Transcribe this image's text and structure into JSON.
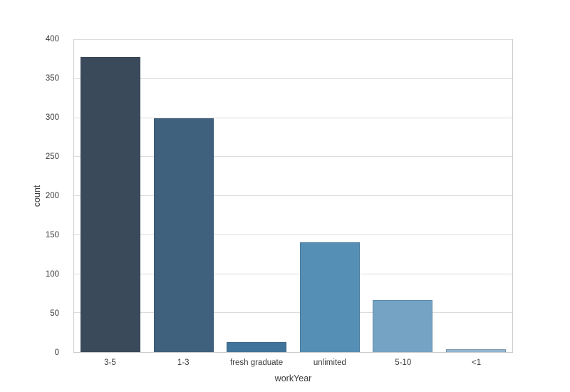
{
  "figure": {
    "background": "#ffffff",
    "plot_background": "#ffffff",
    "grid_color": "#dcdcdc",
    "spine_color": "#cccccc",
    "text_color": "#3b3b3b"
  },
  "chart_data": {
    "type": "bar",
    "title": "",
    "xlabel": "workYear",
    "ylabel": "count",
    "categories": [
      "3-5",
      "1-3",
      "fresh graduate",
      "unlimited",
      "5-10",
      "<1"
    ],
    "values": [
      378,
      300,
      13,
      141,
      67,
      4
    ],
    "bar_colors": [
      "#3b4a5a",
      "#3f617e",
      "#41749a",
      "#568fb5",
      "#74a3c4",
      "#92b5d1"
    ],
    "ylim": [
      0,
      400
    ],
    "yticks": [
      0,
      50,
      100,
      150,
      200,
      250,
      300,
      350,
      400
    ],
    "grid": "horizontal",
    "legend": "none",
    "style": "whitegrid"
  }
}
